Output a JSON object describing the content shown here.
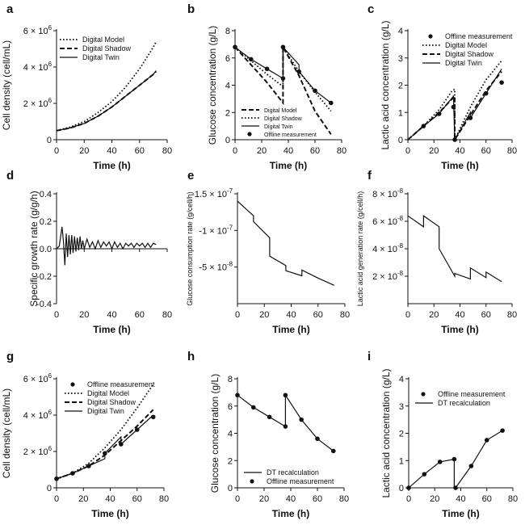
{
  "figure": {
    "panels": [
      "a",
      "b",
      "c",
      "d",
      "e",
      "f",
      "g",
      "h",
      "i"
    ]
  },
  "chart_data": [
    {
      "id": "a",
      "type": "line",
      "letter": "a",
      "xlabel": "Time (h)",
      "ylabel": "Cell density (cell/mL)",
      "xlim": [
        0,
        80
      ],
      "ylim": [
        0,
        6000000
      ],
      "xticks": [
        0,
        20,
        40,
        60,
        80
      ],
      "xtick_labels": [
        "0",
        "20",
        "40",
        "60",
        "80"
      ],
      "yticks": [
        0,
        2000000,
        4000000,
        6000000
      ],
      "ytick_labels": [
        {
          "base": "0",
          "exp": ""
        },
        {
          "base": "2 × 10",
          "exp": "6"
        },
        {
          "base": "4 × 10",
          "exp": "6"
        },
        {
          "base": "6 × 10",
          "exp": "6"
        }
      ],
      "legend_position": "top-left",
      "series": [
        {
          "name": "Digital Model",
          "style": "dotted",
          "x": [
            0,
            10,
            20,
            30,
            40,
            50,
            60,
            70,
            72
          ],
          "y": [
            500000,
            700000,
            1000000,
            1500000,
            2100000,
            2900000,
            3900000,
            5100000,
            5400000
          ]
        },
        {
          "name": "Digital Shadow",
          "style": "dashed",
          "x": [
            0,
            10,
            20,
            30,
            40,
            50,
            60,
            70,
            72
          ],
          "y": [
            500000,
            650000,
            900000,
            1300000,
            1800000,
            2400000,
            3000000,
            3600000,
            3750000
          ]
        },
        {
          "name": "Digital Twin",
          "style": "solid",
          "x": [
            0,
            10,
            20,
            30,
            40,
            50,
            60,
            70,
            72
          ],
          "y": [
            500000,
            650000,
            900000,
            1300000,
            1800000,
            2400000,
            3000000,
            3600000,
            3800000
          ]
        }
      ]
    },
    {
      "id": "b",
      "type": "line",
      "letter": "b",
      "xlabel": "Time (h)",
      "ylabel": "Glucose concentration (g/L)",
      "xlim": [
        0,
        80
      ],
      "ylim": [
        0,
        8
      ],
      "xticks": [
        0,
        20,
        40,
        60,
        80
      ],
      "xtick_labels": [
        "0",
        "20",
        "40",
        "60",
        "80"
      ],
      "yticks": [
        0,
        2,
        4,
        6,
        8
      ],
      "ytick_labels": [
        "0",
        "2",
        "4",
        "6",
        "8"
      ],
      "legend_position": "bottom-left",
      "series": [
        {
          "name": "Digital Model",
          "style": "dashed",
          "x": [
            0,
            12,
            24,
            36,
            36,
            48,
            60,
            72
          ],
          "y": [
            6.8,
            5.5,
            4.2,
            2.7,
            6.8,
            4.7,
            2.1,
            0.4
          ]
        },
        {
          "name": "Digital Shadow",
          "style": "dotted",
          "x": [
            0,
            12,
            24,
            36,
            36,
            48,
            60,
            72
          ],
          "y": [
            6.8,
            5.8,
            4.8,
            3.9,
            6.8,
            5.0,
            3.5,
            2.1
          ]
        },
        {
          "name": "Digital Twin",
          "style": "solid",
          "x": [
            0,
            12,
            12,
            24,
            24,
            36,
            36,
            48,
            48,
            60,
            60,
            72
          ],
          "y": [
            6.8,
            5.9,
            5.9,
            5.2,
            5.2,
            4.5,
            6.8,
            5.5,
            5.0,
            3.6,
            3.6,
            2.7
          ]
        },
        {
          "name": "Offline measurement",
          "style": "markers",
          "x": [
            0,
            12,
            24,
            36,
            36,
            48,
            60,
            72
          ],
          "y": [
            6.8,
            5.9,
            5.2,
            4.5,
            6.8,
            5.0,
            3.6,
            2.7
          ]
        }
      ]
    },
    {
      "id": "c",
      "type": "line",
      "letter": "c",
      "xlabel": "Time (h)",
      "ylabel": "Lactic acid concentration (g/L)",
      "xlim": [
        0,
        80
      ],
      "ylim": [
        0,
        4
      ],
      "xticks": [
        0,
        20,
        40,
        60,
        80
      ],
      "xtick_labels": [
        "0",
        "20",
        "40",
        "60",
        "80"
      ],
      "yticks": [
        0,
        1,
        2,
        3,
        4
      ],
      "ytick_labels": [
        "0",
        "1",
        "2",
        "3",
        "4"
      ],
      "legend_position": "top-right",
      "series": [
        {
          "name": "Offline measurement",
          "style": "markers",
          "x": [
            12,
            24,
            35,
            36,
            48,
            60,
            72
          ],
          "y": [
            0.5,
            0.95,
            1.2,
            0.0,
            0.8,
            1.7,
            2.1
          ]
        },
        {
          "name": "Digital Model",
          "style": "dotted",
          "x": [
            0,
            12,
            24,
            34,
            36,
            36,
            48,
            60,
            72
          ],
          "y": [
            0,
            0.5,
            1.1,
            1.8,
            1.85,
            0,
            1.2,
            2.2,
            2.9
          ]
        },
        {
          "name": "Digital Shadow",
          "style": "dashed",
          "x": [
            0,
            12,
            24,
            34,
            36,
            36,
            48,
            60,
            72
          ],
          "y": [
            0,
            0.5,
            1.0,
            1.5,
            1.6,
            0,
            0.9,
            1.8,
            2.5
          ]
        },
        {
          "name": "Digital Twin",
          "style": "solid",
          "x": [
            0,
            12,
            24,
            35,
            35,
            36,
            36,
            48,
            48,
            60,
            72
          ],
          "y": [
            0,
            0.5,
            0.95,
            1.6,
            1.6,
            0,
            0,
            1.0,
            0.8,
            1.7,
            2.6
          ]
        }
      ]
    },
    {
      "id": "d",
      "type": "line",
      "letter": "d",
      "xlabel": "Time (h)",
      "ylabel": "Specific growth rate (g/g/h)",
      "xlim": [
        0,
        80
      ],
      "ylim": [
        -0.4,
        0.4
      ],
      "xticks": [
        0,
        20,
        40,
        60,
        80
      ],
      "xtick_labels": [
        "0",
        "20",
        "40",
        "60",
        "80"
      ],
      "yticks": [
        -0.4,
        -0.2,
        0.0,
        0.2,
        0.4
      ],
      "ytick_labels": [
        "-0.4",
        "-0.2",
        "0.0",
        "0.2",
        "0.4"
      ],
      "series": [
        {
          "name": "",
          "style": "solid",
          "x": [
            0,
            2,
            4,
            5,
            6,
            7,
            8,
            9,
            10,
            11,
            12,
            13,
            14,
            15,
            16,
            17,
            18,
            19,
            20,
            22,
            24,
            26,
            28,
            30,
            32,
            34,
            36,
            38,
            40,
            42,
            44,
            46,
            48,
            50,
            52,
            54,
            56,
            58,
            60,
            62,
            64,
            66,
            68,
            70,
            72
          ],
          "y": [
            0.0,
            0.02,
            0.16,
            0.05,
            -0.12,
            0.11,
            -0.06,
            0.1,
            -0.04,
            0.1,
            -0.03,
            0.09,
            -0.02,
            0.08,
            -0.01,
            0.09,
            0.0,
            0.06,
            0.0,
            0.07,
            0.01,
            0.05,
            0.0,
            0.06,
            0.01,
            0.05,
            0.02,
            0.05,
            0.0,
            0.05,
            0.01,
            0.04,
            0.0,
            0.04,
            0.02,
            0.04,
            0.01,
            0.04,
            0.02,
            0.04,
            0.01,
            0.04,
            0.01,
            0.04,
            0.03
          ]
        }
      ]
    },
    {
      "id": "e",
      "type": "line",
      "letter": "e",
      "xlabel": "Time (h)",
      "ylabel": "Glucose consumption rate (g/cell/h)",
      "xlim": [
        0,
        80
      ],
      "ylim": [
        0,
        -1.5e-07
      ],
      "y_reversed": true,
      "xticks": [
        0,
        20,
        40,
        60,
        80
      ],
      "xtick_labels": [
        "0",
        "20",
        "40",
        "60",
        "80"
      ],
      "yticks": [
        -1.5e-07,
        -1e-07,
        -5e-08
      ],
      "ytick_labels": [
        {
          "base": "-1.5 × 10",
          "exp": "-7"
        },
        {
          "base": "-1 × 10",
          "exp": "-7"
        },
        {
          "base": "-5 × 10",
          "exp": "-8"
        }
      ],
      "series": [
        {
          "name": "",
          "style": "solid",
          "x": [
            0,
            12,
            12,
            24,
            24,
            36,
            36,
            48,
            48,
            60,
            60,
            72
          ],
          "y": [
            -1.4e-07,
            -1.2e-07,
            -1.12e-07,
            -9e-08,
            -6.5e-08,
            -5.2e-08,
            -4.5e-08,
            -3.8e-08,
            -4.6e-08,
            -3.5e-08,
            -3.5e-08,
            -2.5e-08
          ]
        }
      ]
    },
    {
      "id": "f",
      "type": "line",
      "letter": "f",
      "xlabel": "Time (h)",
      "ylabel": "Lactic acid generation rate (g/cell/h)",
      "xlim": [
        0,
        80
      ],
      "ylim": [
        0,
        8e-08
      ],
      "xticks": [
        0,
        20,
        40,
        60,
        80
      ],
      "xtick_labels": [
        "0",
        "20",
        "40",
        "60",
        "80"
      ],
      "yticks": [
        2e-08,
        4e-08,
        6e-08,
        8e-08
      ],
      "ytick_labels": [
        {
          "base": "2 × 10",
          "exp": "-8"
        },
        {
          "base": "4 × 10",
          "exp": "-8"
        },
        {
          "base": "6 × 10",
          "exp": "-8"
        },
        {
          "base": "8 × 10",
          "exp": "-8"
        }
      ],
      "series": [
        {
          "name": "",
          "style": "solid",
          "x": [
            0,
            12,
            12,
            24,
            24,
            36,
            36,
            48,
            48,
            60,
            60,
            72
          ],
          "y": [
            6.4e-08,
            5.6e-08,
            6.4e-08,
            5.6e-08,
            4e-08,
            2e-08,
            2.2e-08,
            1.8e-08,
            2.6e-08,
            1.9e-08,
            2.3e-08,
            1.6e-08
          ]
        }
      ]
    },
    {
      "id": "g",
      "type": "line",
      "letter": "g",
      "xlabel": "Time (h)",
      "ylabel": "Cell density (cell/mL)",
      "xlim": [
        0,
        80
      ],
      "ylim": [
        0,
        6000000
      ],
      "xticks": [
        0,
        20,
        40,
        60,
        80
      ],
      "xtick_labels": [
        "0",
        "20",
        "40",
        "60",
        "80"
      ],
      "yticks": [
        0,
        2000000,
        4000000,
        6000000
      ],
      "ytick_labels": [
        {
          "base": "0",
          "exp": ""
        },
        {
          "base": "2 × 10",
          "exp": "6"
        },
        {
          "base": "4 × 10",
          "exp": "6"
        },
        {
          "base": "6 × 10",
          "exp": "6"
        }
      ],
      "legend_position": "top-right",
      "series": [
        {
          "name": "Offline measurement",
          "style": "markers",
          "x": [
            0,
            12,
            24,
            36,
            48,
            60,
            72
          ],
          "y": [
            500000,
            800000,
            1200000,
            1900000,
            2400000,
            3200000,
            3900000
          ]
        },
        {
          "name": "Digital Model",
          "style": "dotted",
          "x": [
            0,
            12,
            24,
            36,
            48,
            60,
            72
          ],
          "y": [
            500000,
            800000,
            1350000,
            2200000,
            3200000,
            4400000,
            5700000
          ]
        },
        {
          "name": "Digital Shadow",
          "style": "dashed",
          "x": [
            0,
            12,
            24,
            36,
            48,
            60,
            72
          ],
          "y": [
            500000,
            800000,
            1200000,
            1800000,
            2600000,
            3400000,
            4300000
          ]
        },
        {
          "name": "Digital Twin",
          "style": "solid",
          "x": [
            0,
            12,
            24,
            36,
            36,
            48,
            48,
            60,
            72
          ],
          "y": [
            500000,
            800000,
            1200000,
            1600000,
            1900000,
            2800000,
            2400000,
            3200000,
            4000000
          ]
        }
      ]
    },
    {
      "id": "h",
      "type": "line",
      "letter": "h",
      "xlabel": "Time (h)",
      "ylabel": "Glucose concentration (g/L)",
      "xlim": [
        0,
        80
      ],
      "ylim": [
        0,
        8
      ],
      "xticks": [
        0,
        20,
        40,
        60,
        80
      ],
      "xtick_labels": [
        "0",
        "20",
        "40",
        "60",
        "80"
      ],
      "yticks": [
        0,
        2,
        4,
        6,
        8
      ],
      "ytick_labels": [
        "0",
        "2",
        "4",
        "6",
        "8"
      ],
      "legend_position": "bottom-left",
      "series": [
        {
          "name": "DT recalculation",
          "style": "solid",
          "x": [
            0,
            12,
            24,
            36,
            36,
            48,
            60,
            72
          ],
          "y": [
            6.8,
            5.9,
            5.2,
            4.5,
            6.8,
            5.0,
            3.6,
            2.7
          ]
        },
        {
          "name": "Offline measurement",
          "style": "markers",
          "x": [
            0,
            12,
            24,
            36,
            36,
            48,
            60,
            72
          ],
          "y": [
            6.8,
            5.9,
            5.2,
            4.5,
            6.8,
            5.0,
            3.6,
            2.7
          ]
        }
      ]
    },
    {
      "id": "i",
      "type": "line",
      "letter": "i",
      "xlabel": "Time (h)",
      "ylabel": "Lactic acid concentration (g/L)",
      "xlim": [
        0,
        80
      ],
      "ylim": [
        0,
        4
      ],
      "xticks": [
        0,
        20,
        40,
        60,
        80
      ],
      "xtick_labels": [
        "0",
        "20",
        "40",
        "60",
        "80"
      ],
      "yticks": [
        0,
        1,
        2,
        3,
        4
      ],
      "ytick_labels": [
        "0",
        "1",
        "2",
        "3",
        "4"
      ],
      "legend_position": "top-right",
      "series": [
        {
          "name": "Offline measurement",
          "style": "markers",
          "x": [
            0,
            12,
            24,
            35,
            36,
            48,
            60,
            72
          ],
          "y": [
            0.0,
            0.5,
            0.95,
            1.05,
            0.0,
            0.8,
            1.75,
            2.1
          ]
        },
        {
          "name": "DT recalculation",
          "style": "solid",
          "x": [
            0,
            12,
            24,
            35,
            35,
            36,
            48,
            60,
            72
          ],
          "y": [
            0.0,
            0.5,
            0.95,
            1.05,
            0.0,
            0.0,
            0.8,
            1.75,
            2.1
          ]
        }
      ]
    }
  ]
}
